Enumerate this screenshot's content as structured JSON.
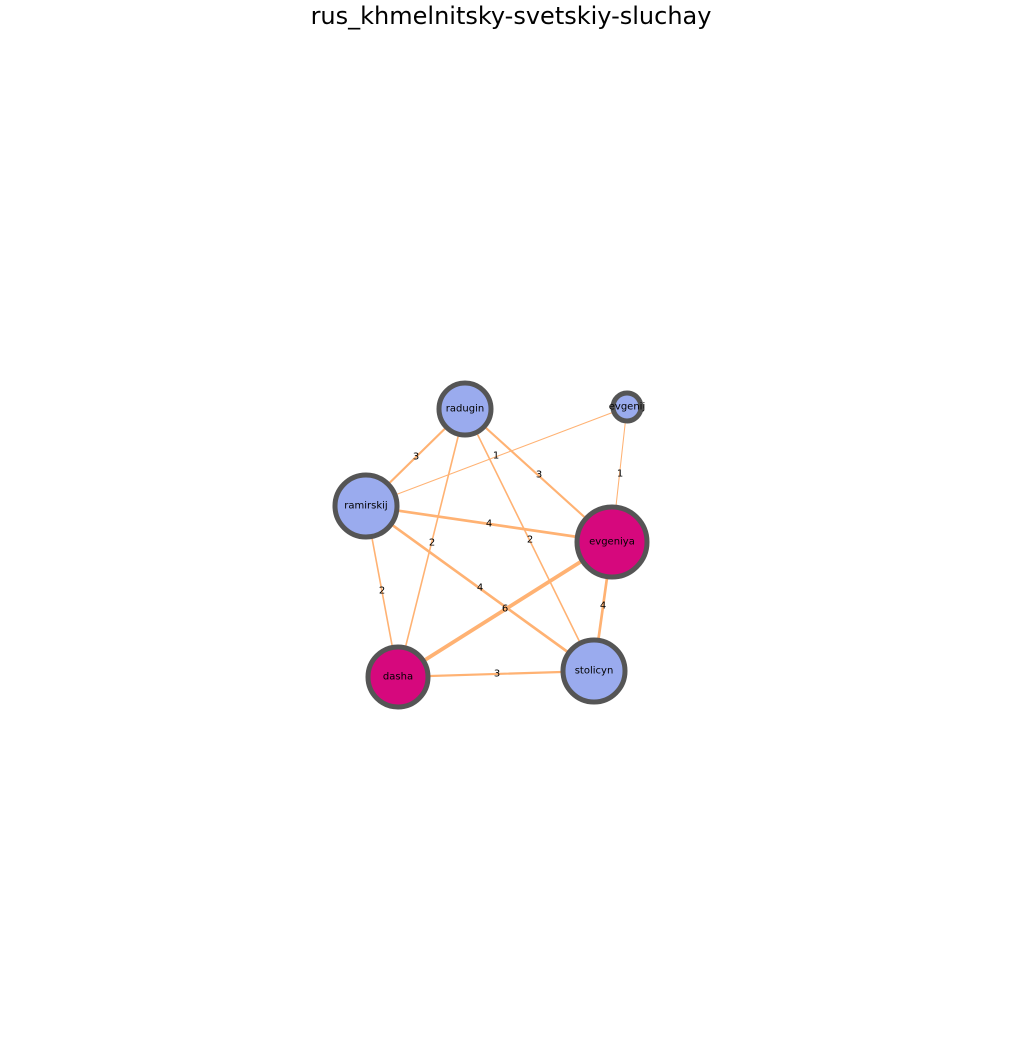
{
  "title": "rus_khmelnitsky-svetskiy-sluchay",
  "colors": {
    "edge": "#ffb273",
    "node_outline": "#555555",
    "node_default": "#9aabee",
    "node_highlight": "#d6087d"
  },
  "nodes": [
    {
      "id": "radugin",
      "label": "radugin",
      "group": "default"
    },
    {
      "id": "evgenij",
      "label": "evgenij",
      "group": "default"
    },
    {
      "id": "ramirskij",
      "label": "ramirskij",
      "group": "default"
    },
    {
      "id": "evgeniya",
      "label": "evgeniya",
      "group": "highlight"
    },
    {
      "id": "dasha",
      "label": "dasha",
      "group": "highlight"
    },
    {
      "id": "stolicyn",
      "label": "stolicyn",
      "group": "default"
    }
  ],
  "edges": [
    {
      "source": "radugin",
      "target": "ramirskij",
      "weight": 3
    },
    {
      "source": "radugin",
      "target": "evgeniya",
      "weight": 3
    },
    {
      "source": "radugin",
      "target": "stolicyn",
      "weight": 2
    },
    {
      "source": "radugin",
      "target": "dasha",
      "weight": 2
    },
    {
      "source": "ramirskij",
      "target": "evgenij",
      "weight": 1
    },
    {
      "source": "evgenij",
      "target": "evgeniya",
      "weight": 1
    },
    {
      "source": "ramirskij",
      "target": "evgeniya",
      "weight": 4
    },
    {
      "source": "ramirskij",
      "target": "stolicyn",
      "weight": 4
    },
    {
      "source": "ramirskij",
      "target": "dasha",
      "weight": 2
    },
    {
      "source": "evgeniya",
      "target": "dasha",
      "weight": 6
    },
    {
      "source": "evgeniya",
      "target": "stolicyn",
      "weight": 4
    },
    {
      "source": "dasha",
      "target": "stolicyn",
      "weight": 3
    }
  ],
  "extra_labels": [
    "1"
  ]
}
